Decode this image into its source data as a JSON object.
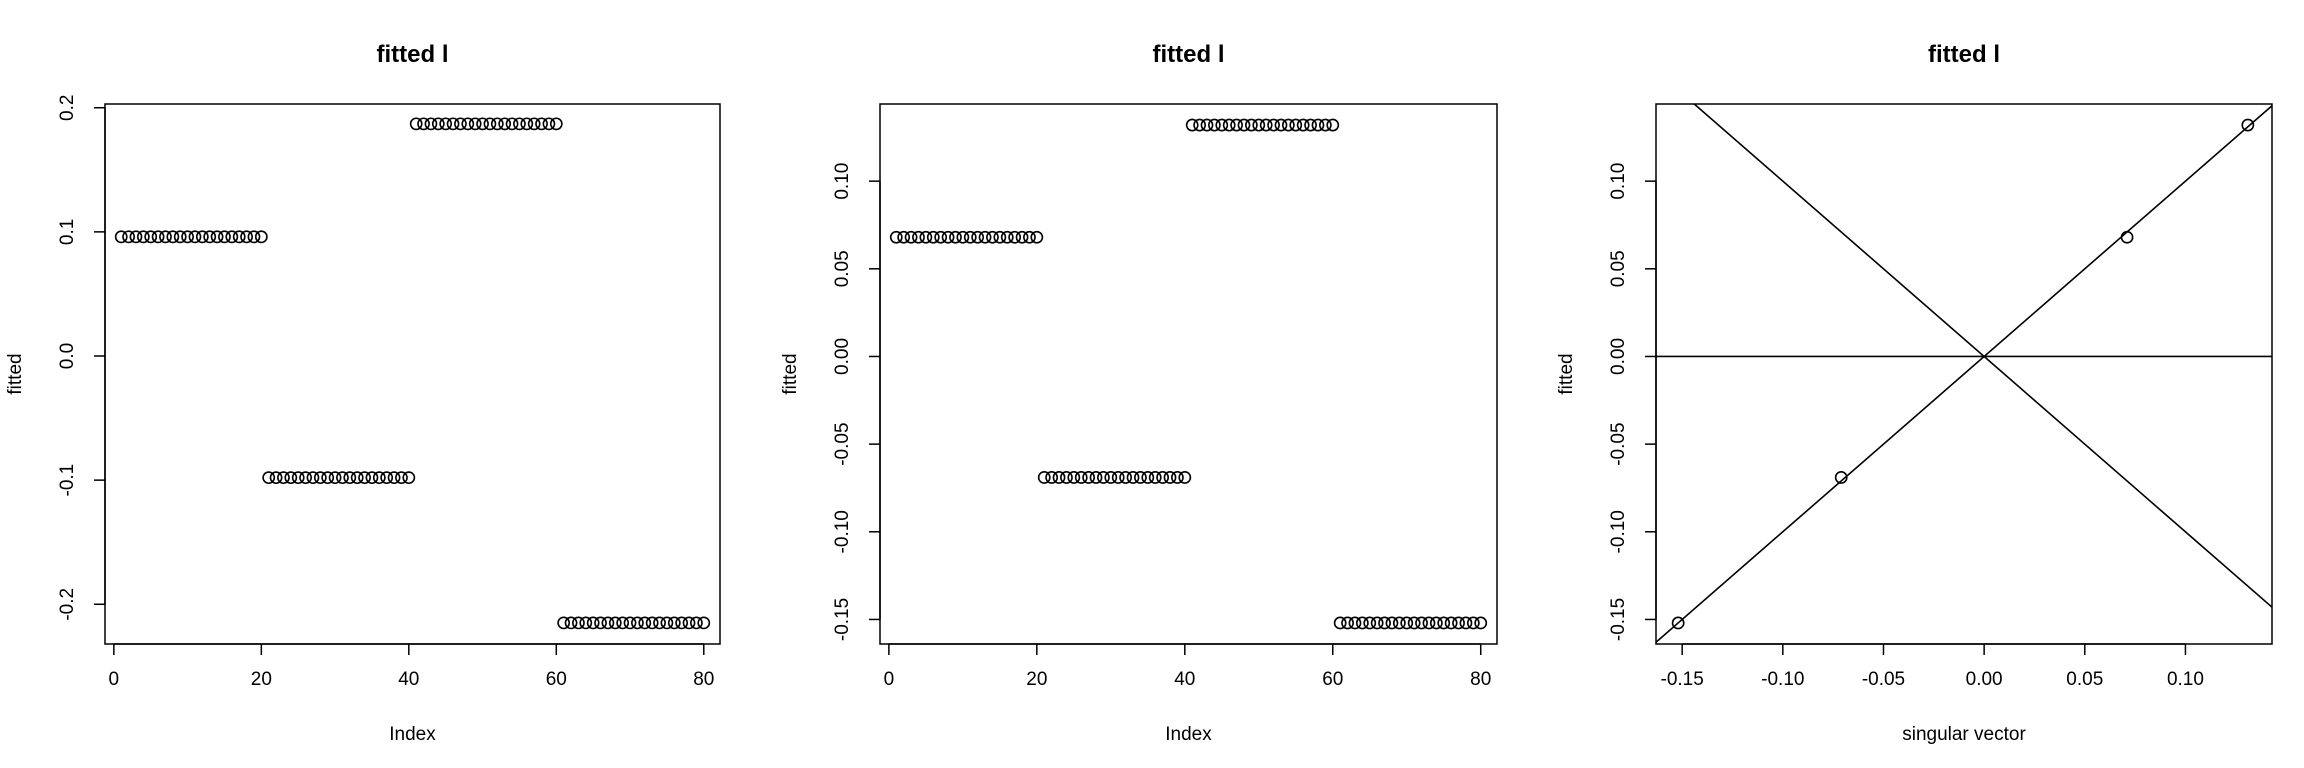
{
  "chart_data": [
    {
      "type": "scatter",
      "title": "fitted l",
      "xlabel": "Index",
      "ylabel": "fitted",
      "xlim": [
        -1.2,
        82.2
      ],
      "ylim": [
        -0.232,
        0.203
      ],
      "x_ticks": [
        0,
        20,
        40,
        60,
        80
      ],
      "x_tick_labels": [
        "0",
        "20",
        "40",
        "60",
        "80"
      ],
      "y_ticks": [
        -0.2,
        -0.1,
        0.0,
        0.1,
        0.2
      ],
      "y_tick_labels": [
        "-0.2",
        "-0.1",
        "0.0",
        "0.1",
        "0.2"
      ],
      "grid": false,
      "marker": "open-circle",
      "segments": [
        {
          "x_start": 1,
          "x_end": 20,
          "y": 0.096
        },
        {
          "x_start": 21,
          "x_end": 40,
          "y": -0.098
        },
        {
          "x_start": 41,
          "x_end": 60,
          "y": 0.187
        },
        {
          "x_start": 61,
          "x_end": 80,
          "y": -0.215
        }
      ]
    },
    {
      "type": "scatter",
      "title": "fitted l",
      "xlabel": "Index",
      "ylabel": "fitted",
      "xlim": [
        -1.2,
        82.2
      ],
      "ylim": [
        -0.164,
        0.144
      ],
      "x_ticks": [
        0,
        20,
        40,
        60,
        80
      ],
      "x_tick_labels": [
        "0",
        "20",
        "40",
        "60",
        "80"
      ],
      "y_ticks": [
        -0.15,
        -0.1,
        -0.05,
        0.0,
        0.05,
        0.1
      ],
      "y_tick_labels": [
        "-0.15",
        "-0.10",
        "-0.05",
        "0.00",
        "0.05",
        "0.10"
      ],
      "grid": false,
      "marker": "open-circle",
      "segments": [
        {
          "x_start": 1,
          "x_end": 20,
          "y": 0.068
        },
        {
          "x_start": 21,
          "x_end": 40,
          "y": -0.069
        },
        {
          "x_start": 41,
          "x_end": 60,
          "y": 0.132
        },
        {
          "x_start": 61,
          "x_end": 80,
          "y": -0.152
        }
      ]
    },
    {
      "type": "scatter",
      "title": "fitted l",
      "xlabel": "singular vector",
      "ylabel": "fitted",
      "xlim": [
        -0.163,
        0.143
      ],
      "ylim": [
        -0.164,
        0.144
      ],
      "x_ticks": [
        -0.15,
        -0.1,
        -0.05,
        0.0,
        0.05,
        0.1
      ],
      "x_tick_labels": [
        "-0.15",
        "-0.10",
        "-0.05",
        "0.00",
        "0.05",
        "0.10"
      ],
      "y_ticks": [
        -0.15,
        -0.1,
        -0.05,
        0.0,
        0.05,
        0.1
      ],
      "y_tick_labels": [
        "-0.15",
        "-0.10",
        "-0.05",
        "0.00",
        "0.05",
        "0.10"
      ],
      "grid": false,
      "marker": "open-circle",
      "points": [
        {
          "x": -0.152,
          "y": -0.152
        },
        {
          "x": -0.071,
          "y": -0.069
        },
        {
          "x": 0.071,
          "y": 0.068
        },
        {
          "x": 0.131,
          "y": 0.132
        }
      ],
      "reference_lines": [
        {
          "kind": "identity",
          "slope": 1,
          "intercept": 0
        },
        {
          "kind": "negative-identity",
          "slope": -1,
          "intercept": 0
        },
        {
          "kind": "horizontal",
          "slope": 0,
          "intercept": 0
        }
      ]
    }
  ]
}
